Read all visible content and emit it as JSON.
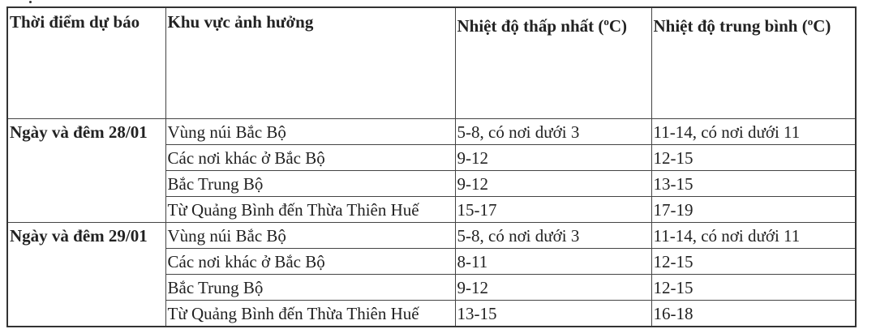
{
  "headers": [
    "Thời điểm dự báo",
    "Khu vực ảnh hưởng",
    "Nhiệt độ thấp nhất (oC)",
    "Nhiệt độ trung bình (oC)"
  ],
  "header_parts": {
    "min_prefix": "Nhiệt độ thấp nhất (",
    "avg_prefix": "Nhiệt độ trung bình (",
    "sup": "o",
    "suffix": "C)"
  },
  "groups": [
    {
      "day": "Ngày và đêm 28/01",
      "rows": [
        {
          "area": "Vùng núi Bắc Bộ",
          "min": "5-8, có nơi dưới 3",
          "avg": "11-14, có nơi dưới 11"
        },
        {
          "area": "Các nơi khác ở Bắc Bộ",
          "min": "9-12",
          "avg": "12-15"
        },
        {
          "area": "Bắc Trung Bộ",
          "min": "9-12",
          "avg": "13-15"
        },
        {
          "area": "Từ Quảng Bình đến Thừa Thiên Huế",
          "min": "15-17",
          "avg": "17-19"
        }
      ]
    },
    {
      "day": "Ngày và đêm 29/01",
      "rows": [
        {
          "area": "Vùng núi Bắc Bộ",
          "min": "5-8, có nơi dưới 3",
          "avg": "11-14, có nơi dưới 11"
        },
        {
          "area": "Các nơi khác ở Bắc Bộ",
          "min": "8-11",
          "avg": "12-15"
        },
        {
          "area": "Bắc Trung Bộ",
          "min": "9-12",
          "avg": "12-15"
        },
        {
          "area": "Từ Quảng Bình đến Thừa Thiên Huế",
          "min": "13-15",
          "avg": "16-18"
        }
      ]
    }
  ]
}
